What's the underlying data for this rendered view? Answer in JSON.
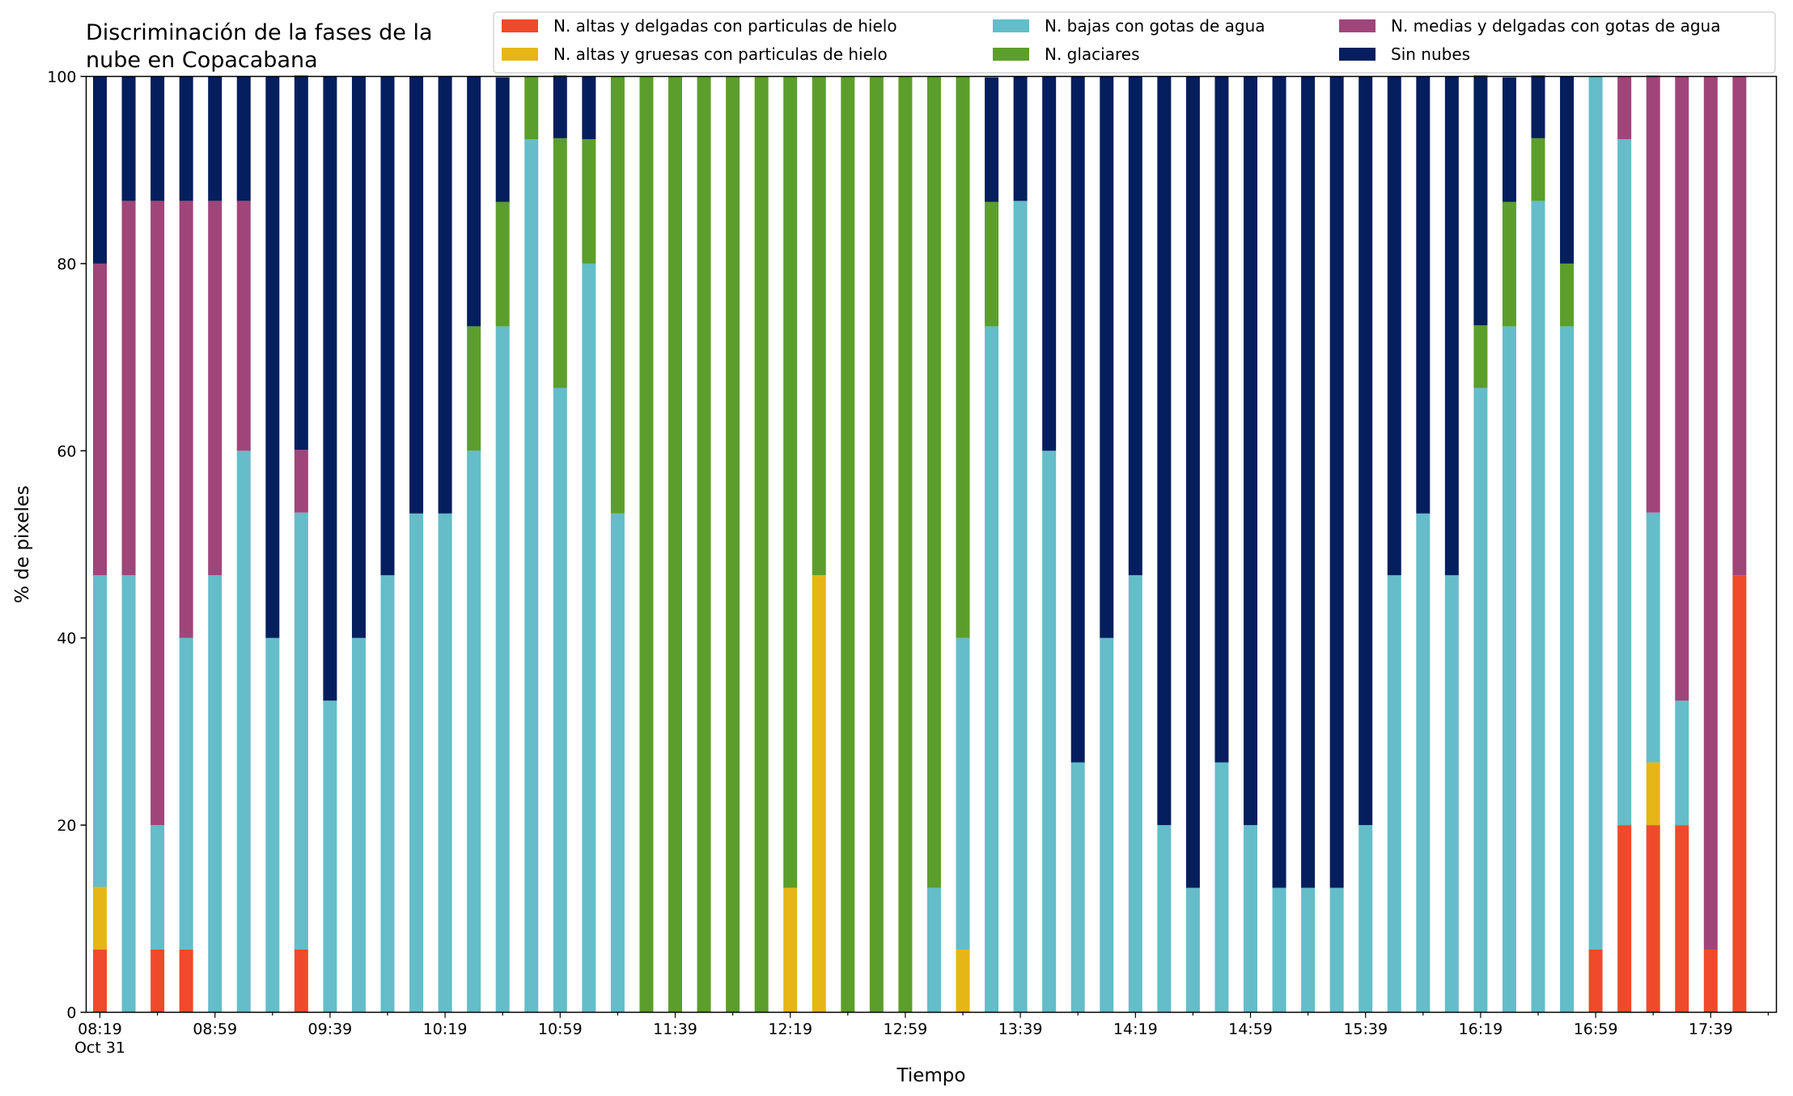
{
  "chart_data": {
    "type": "bar",
    "stacked": true,
    "title": [
      "Discriminación de la fases de la",
      "nube en Copacabana"
    ],
    "xlabel": "Tiempo",
    "ylabel": "% de pixeles",
    "ylim": [
      0,
      100
    ],
    "yticks": [
      "0",
      "20",
      "40",
      "60",
      "80",
      "100"
    ],
    "xticks": [
      "08:19\nOct 31",
      "08:59",
      "09:39",
      "10:19",
      "10:59",
      "11:39",
      "12:19",
      "12:59",
      "13:39",
      "14:19",
      "14:59",
      "15:39",
      "16:19",
      "16:59",
      "17:39"
    ],
    "grid": false,
    "legend_position": "top-right",
    "categories": [
      "08:19",
      "08:29",
      "08:39",
      "08:49",
      "08:59",
      "09:09",
      "09:19",
      "09:29",
      "09:39",
      "09:49",
      "09:59",
      "10:09",
      "10:19",
      "10:29",
      "10:39",
      "10:49",
      "10:59",
      "11:09",
      "11:19",
      "11:29",
      "11:39",
      "11:49",
      "11:59",
      "12:09",
      "12:19",
      "12:29",
      "12:39",
      "12:49",
      "12:59",
      "13:09",
      "13:19",
      "13:29",
      "13:39",
      "13:49",
      "13:59",
      "14:09",
      "14:19",
      "14:29",
      "14:39",
      "14:49",
      "14:59",
      "15:09",
      "15:19",
      "15:29",
      "15:39",
      "15:49",
      "15:59",
      "16:09",
      "16:19",
      "16:29",
      "16:39",
      "16:49",
      "16:59",
      "17:09",
      "17:19",
      "17:29",
      "17:39",
      "17:49"
    ],
    "series": [
      {
        "name": "N. altas y delgadas con particulas de hielo",
        "color": "#ee4a2b",
        "values": [
          6.7,
          0,
          6.7,
          6.7,
          0,
          0,
          0,
          6.7,
          0,
          0,
          0,
          0,
          0,
          0,
          0,
          0,
          0,
          0,
          0,
          0,
          0,
          0,
          0,
          0,
          0,
          0,
          0,
          0,
          0,
          0,
          0,
          0,
          0,
          0,
          0,
          0,
          0,
          0,
          0,
          0,
          0,
          0,
          0,
          0,
          0,
          0,
          0,
          0,
          0,
          0,
          0,
          0,
          6.7,
          20,
          20,
          20,
          6.7,
          46.7
        ]
      },
      {
        "name": "N. altas y gruesas con particulas de hielo",
        "color": "#e6b616",
        "values": [
          6.7,
          0,
          0,
          0,
          0,
          0,
          0,
          0,
          0,
          0,
          0,
          0,
          0,
          0,
          0,
          0,
          0,
          0,
          0,
          0,
          0,
          0,
          0,
          0,
          13.3,
          46.7,
          0,
          0,
          0,
          0,
          6.7,
          0,
          0,
          0,
          0,
          0,
          0,
          0,
          0,
          0,
          0,
          0,
          0,
          0,
          0,
          0,
          0,
          0,
          0,
          0,
          0,
          0,
          0,
          0,
          6.7,
          0,
          0,
          0
        ]
      },
      {
        "name": "N. bajas con gotas de agua",
        "color": "#64bdc9",
        "values": [
          33.3,
          46.7,
          13.3,
          33.3,
          46.7,
          60,
          40,
          46.7,
          33.3,
          40,
          46.7,
          53.3,
          53.3,
          60,
          73.3,
          93.3,
          66.7,
          80,
          53.3,
          0,
          0,
          0,
          0,
          0,
          0,
          0,
          0,
          0,
          0,
          13.3,
          33.3,
          73.3,
          86.7,
          60,
          26.7,
          40,
          46.7,
          20,
          13.3,
          26.7,
          20,
          13.3,
          13.3,
          13.3,
          20,
          46.7,
          53.3,
          46.7,
          66.7,
          73.3,
          86.7,
          73.3,
          93.3,
          73.3,
          26.7,
          13.3,
          0,
          0
        ]
      },
      {
        "name": "N. glaciares",
        "color": "#5c9e2b",
        "values": [
          0,
          0,
          0,
          0,
          0,
          0,
          0,
          0,
          0,
          0,
          0,
          0,
          0,
          13.3,
          13.3,
          6.7,
          26.7,
          13.3,
          46.7,
          100,
          100,
          100,
          100,
          100,
          86.7,
          53.3,
          100,
          100,
          100,
          86.7,
          60,
          13.3,
          0,
          0,
          0,
          0,
          0,
          0,
          0,
          0,
          0,
          0,
          0,
          0,
          0,
          0,
          0,
          0,
          6.7,
          13.3,
          6.7,
          6.7,
          0,
          0,
          0,
          0,
          0,
          0
        ]
      },
      {
        "name": "N. medias y delgadas con gotas de agua",
        "color": "#a0457a",
        "values": [
          33.3,
          40,
          66.7,
          46.7,
          40,
          26.7,
          0,
          6.7,
          0,
          0,
          0,
          0,
          0,
          0,
          0,
          0,
          0,
          0,
          0,
          0,
          0,
          0,
          0,
          0,
          0,
          0,
          0,
          0,
          0,
          0,
          0,
          0,
          0,
          0,
          0,
          0,
          0,
          0,
          0,
          0,
          0,
          0,
          0,
          0,
          0,
          0,
          0,
          0,
          0,
          0,
          0,
          0,
          0,
          6.7,
          46.7,
          66.7,
          93.3,
          53.3
        ]
      },
      {
        "name": "Sin nubes",
        "color": "#051e5e",
        "values": [
          20,
          13.3,
          13.3,
          13.3,
          13.3,
          13.3,
          60,
          40,
          66.7,
          60,
          53.3,
          46.7,
          46.7,
          26.7,
          13.3,
          0,
          6.7,
          6.7,
          0,
          0,
          0,
          0,
          0,
          0,
          0,
          0,
          0,
          0,
          0,
          0,
          0,
          13.3,
          13.3,
          40,
          73.3,
          60,
          53.3,
          80,
          86.7,
          73.3,
          80,
          86.7,
          86.7,
          86.7,
          80,
          53.3,
          46.7,
          53.3,
          26.7,
          13.3,
          6.7,
          20,
          0,
          0,
          0,
          0,
          0,
          0
        ]
      }
    ]
  }
}
